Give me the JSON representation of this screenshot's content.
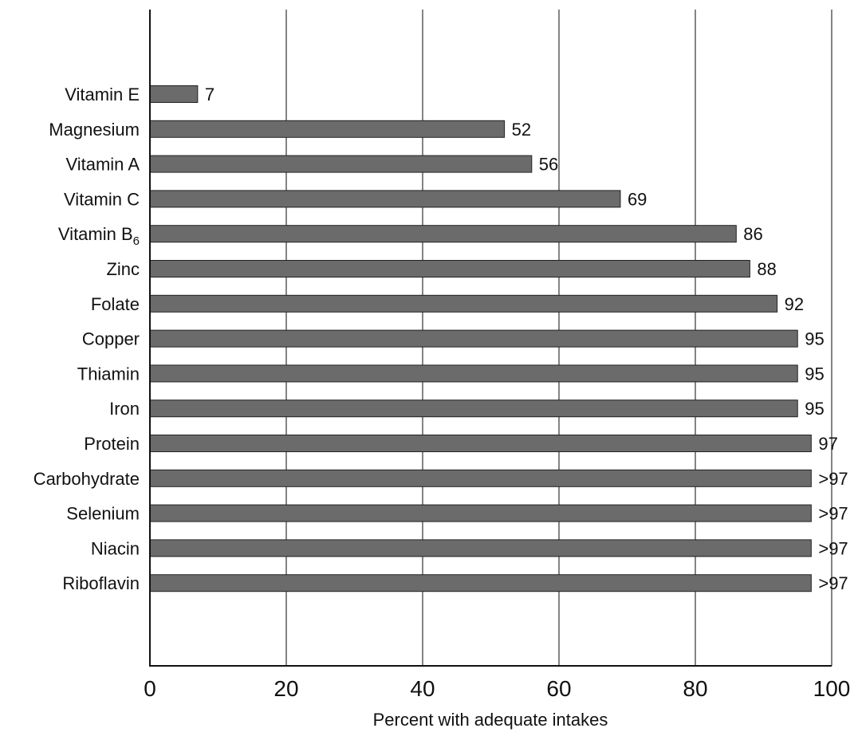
{
  "chart_data": {
    "type": "bar",
    "orientation": "horizontal",
    "categories": [
      "Vitamin E",
      "Magnesium",
      "Vitamin A",
      "Vitamin C",
      "Vitamin B6",
      "Zinc",
      "Folate",
      "Copper",
      "Thiamin",
      "Iron",
      "Protein",
      "Carbohydrate",
      "Selenium",
      "Niacin",
      "Riboflavin"
    ],
    "values": [
      7,
      52,
      56,
      69,
      86,
      88,
      92,
      95,
      95,
      95,
      97,
      97,
      97,
      97,
      97
    ],
    "value_labels": [
      "7",
      "52",
      "56",
      "69",
      "86",
      "88",
      "92",
      "95",
      "95",
      "95",
      "97",
      ">97",
      ">97",
      ">97",
      ">97"
    ],
    "xlabel": "Percent with adequate intakes",
    "ylabel": "",
    "xlim": [
      0,
      100
    ],
    "xticks": [
      0,
      20,
      40,
      60,
      80,
      100
    ],
    "xtick_labels": [
      "0",
      "20",
      "40",
      "60",
      "80",
      "100"
    ],
    "grid": "vertical",
    "colors": {
      "bar": "#6b6b6b",
      "bar_edge": "#222222",
      "axis": "#111111",
      "grid": "#333333"
    }
  }
}
